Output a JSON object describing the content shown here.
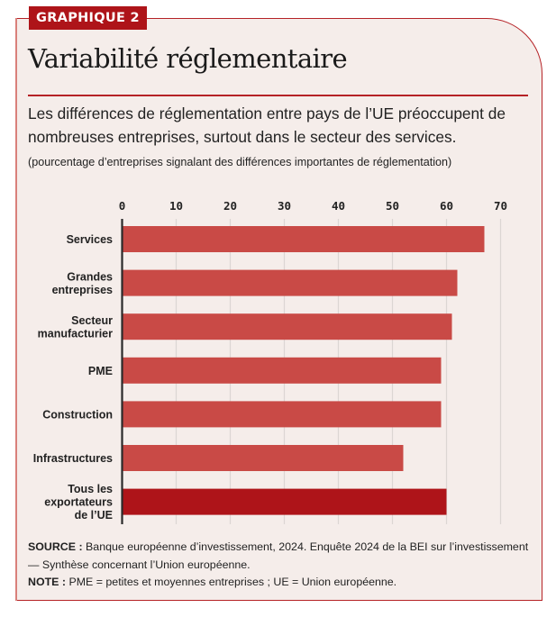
{
  "badge": "GRAPHIQUE 2",
  "title": "Variabilité réglementaire",
  "subtitle": "Les différences de réglementation entre pays de l’UE préoccupent de nombreuses entreprises, surtout dans le secteur des services.",
  "unit_note": "(pourcentage d’entreprises signalant des différences importantes de réglementation)",
  "source_label": "SOURCE :",
  "source_text": " Banque européenne d’investissement, 2024. Enquête 2024 de la BEI sur l’investissement — Synthèse concernant l’Union européenne.",
  "note_label": "NOTE :",
  "note_text": " PME = petites et moyennes entreprises ; UE = Union européenne.",
  "colors": {
    "bar": "#C94A46",
    "highlight": "#AE1419",
    "accent": "#B52226",
    "background": "#F5EDEA"
  },
  "chart_data": {
    "type": "bar",
    "orientation": "horizontal",
    "title": "Variabilité réglementaire",
    "xlabel": "pourcentage d’entreprises signalant des différences importantes de réglementation",
    "ylabel": "",
    "xlim": [
      0,
      70
    ],
    "xticks": [
      0,
      10,
      20,
      30,
      40,
      50,
      60,
      70
    ],
    "tick_position": "top",
    "grid": true,
    "categories": [
      [
        "Services"
      ],
      [
        "Grandes",
        "entreprises"
      ],
      [
        "Secteur",
        "manufacturier"
      ],
      [
        "PME"
      ],
      [
        "Construction"
      ],
      [
        "Infrastructures"
      ],
      [
        "Tous les",
        "exportateurs",
        "de l’UE"
      ]
    ],
    "values": [
      67,
      62,
      61,
      59,
      59,
      52,
      60
    ],
    "highlight_index": 6
  }
}
